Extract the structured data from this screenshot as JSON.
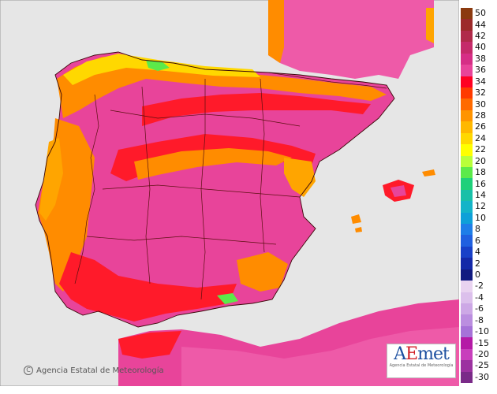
{
  "credit": {
    "text": "Agencia Estatal de Meteorología",
    "icon": "copyright-icon"
  },
  "logo": {
    "wordmark_a": "A",
    "wordmark_e": "E",
    "wordmark_rest": "met",
    "tagline": "Agencia Estatal de Meteorología",
    "colors": {
      "a": "#1c4fa0",
      "e": "#d1232a",
      "met": "#1c4fa0"
    }
  },
  "legend": {
    "steps": [
      {
        "label": "50",
        "color": "#8b3a0f"
      },
      {
        "label": "44",
        "color": "#9c2a2a"
      },
      {
        "label": "42",
        "color": "#b02a4a"
      },
      {
        "label": "40",
        "color": "#c52a6a"
      },
      {
        "label": "38",
        "color": "#d62e86"
      },
      {
        "label": "36",
        "color": "#e8449a"
      },
      {
        "label": "34",
        "color": "#ff0022"
      },
      {
        "label": "32",
        "color": "#ff3a00"
      },
      {
        "label": "30",
        "color": "#ff6a00"
      },
      {
        "label": "28",
        "color": "#ff9400"
      },
      {
        "label": "26",
        "color": "#ffb800"
      },
      {
        "label": "24",
        "color": "#ffd800"
      },
      {
        "label": "22",
        "color": "#ffff00"
      },
      {
        "label": "20",
        "color": "#b8ff3a"
      },
      {
        "label": "18",
        "color": "#5cea4a"
      },
      {
        "label": "16",
        "color": "#1fd07a"
      },
      {
        "label": "14",
        "color": "#18c0a8"
      },
      {
        "label": "12",
        "color": "#14b4c8"
      },
      {
        "label": "10",
        "color": "#0ea0d8"
      },
      {
        "label": "8",
        "color": "#1e7ee8"
      },
      {
        "label": "6",
        "color": "#2060e0"
      },
      {
        "label": "4",
        "color": "#1840c8"
      },
      {
        "label": "2",
        "color": "#1428a8"
      },
      {
        "label": "0",
        "color": "#101a80"
      },
      {
        "label": "-2",
        "color": "#e9d3f0"
      },
      {
        "label": "-4",
        "color": "#dcc0ec"
      },
      {
        "label": "-6",
        "color": "#cda8e6"
      },
      {
        "label": "-8",
        "color": "#bb8ee0"
      },
      {
        "label": "-10",
        "color": "#a672d8"
      },
      {
        "label": "-15",
        "color": "#b51aa6"
      },
      {
        "label": "-20",
        "color": "#c83fbc"
      },
      {
        "label": "-25",
        "color": "#9c32a0"
      },
      {
        "label": "-30",
        "color": "#7a2a88"
      }
    ]
  },
  "colors": {
    "sea": "#e6e6e6",
    "pink": "#e8449a",
    "pink_light": "#ee5aa8",
    "red": "#ff1a2a",
    "orange": "#ff8c00",
    "orange_light": "#ffa500",
    "yellow": "#ffd800",
    "green": "#5cea4a",
    "border": "#5a1010"
  }
}
